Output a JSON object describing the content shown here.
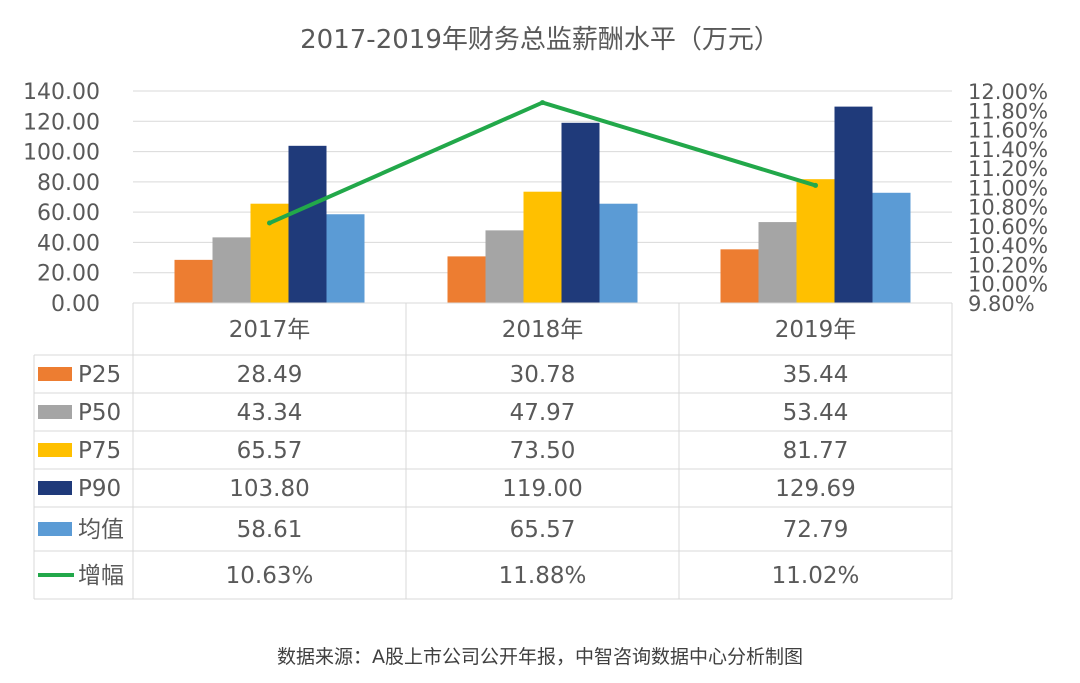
{
  "chart_data": {
    "type": "bar",
    "title": "2017-2019年财务总监薪酬水平（万元）",
    "categories": [
      "2017年",
      "2018年",
      "2019年"
    ],
    "y_left": {
      "ylim": [
        0,
        140
      ],
      "ticks": [
        "0.00",
        "20.00",
        "40.00",
        "60.00",
        "80.00",
        "100.00",
        "120.00",
        "140.00"
      ]
    },
    "y_right": {
      "ylim": [
        9.8,
        12.0
      ],
      "ticks": [
        "9.80%",
        "10.00%",
        "10.20%",
        "10.40%",
        "10.60%",
        "10.80%",
        "11.00%",
        "11.20%",
        "11.40%",
        "11.60%",
        "11.80%",
        "12.00%"
      ]
    },
    "series": [
      {
        "name": "P25",
        "type": "bar",
        "color": "#ED7D31",
        "values": [
          28.49,
          30.78,
          35.44
        ],
        "labels": [
          "28.49",
          "30.78",
          "35.44"
        ]
      },
      {
        "name": "P50",
        "type": "bar",
        "color": "#A5A5A5",
        "values": [
          43.34,
          47.97,
          53.44
        ],
        "labels": [
          "43.34",
          "47.97",
          "53.44"
        ]
      },
      {
        "name": "P75",
        "type": "bar",
        "color": "#FFC000",
        "values": [
          65.57,
          73.5,
          81.77
        ],
        "labels": [
          "65.57",
          "73.50",
          "81.77"
        ]
      },
      {
        "name": "P90",
        "type": "bar",
        "color": "#1F3A7A",
        "values": [
          103.8,
          119.0,
          129.69
        ],
        "labels": [
          "103.80",
          "119.00",
          "129.69"
        ]
      },
      {
        "name": "均值",
        "type": "bar",
        "color": "#5B9BD5",
        "values": [
          58.61,
          65.57,
          72.79
        ],
        "labels": [
          "58.61",
          "65.57",
          "72.79"
        ]
      },
      {
        "name": "增幅",
        "type": "line",
        "axis": "right",
        "color": "#22A84A",
        "values": [
          10.63,
          11.88,
          11.02
        ],
        "labels": [
          "10.63%",
          "11.88%",
          "11.02%"
        ]
      }
    ],
    "legend": "bottom data table"
  },
  "source_note": "数据来源：A股上市公司公开年报，中智咨询数据中心分析制图"
}
